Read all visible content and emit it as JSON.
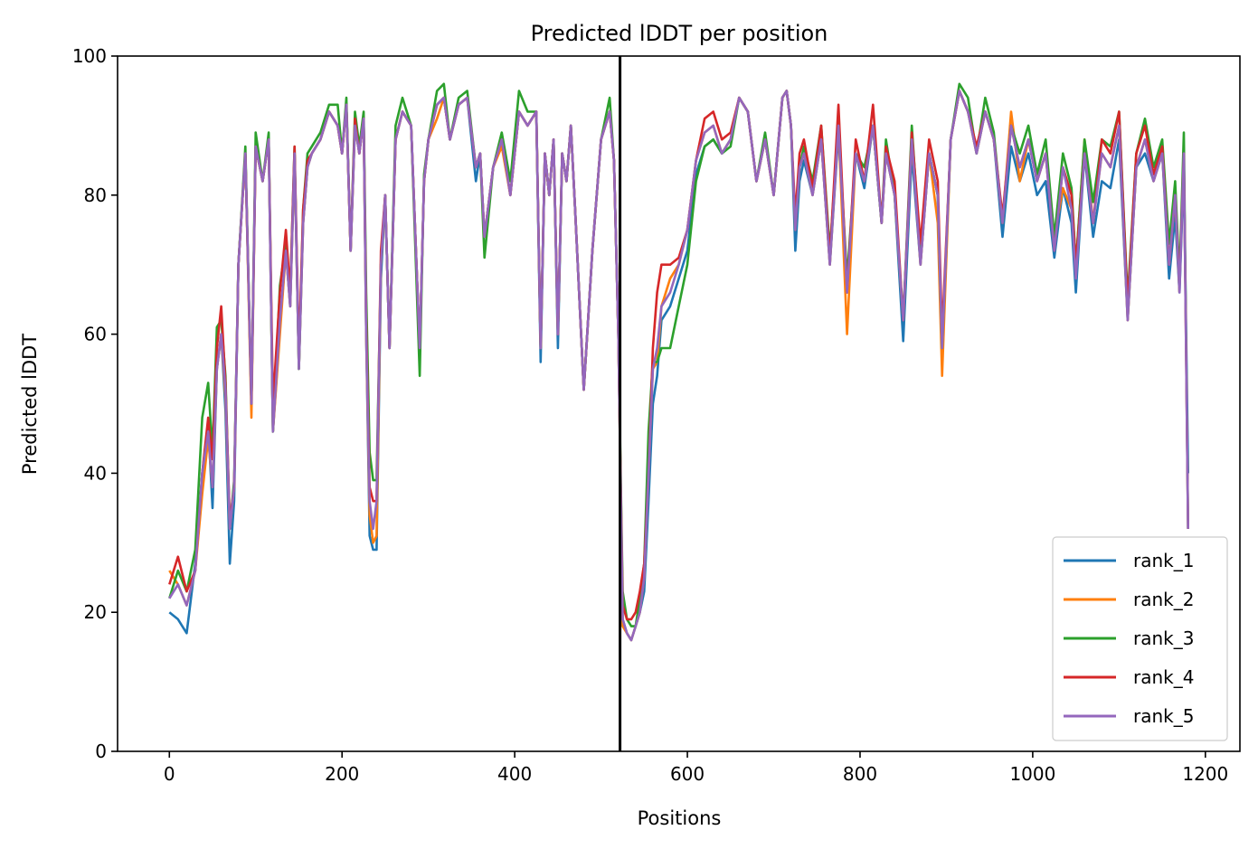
{
  "chart_data": {
    "type": "line",
    "title": "Predicted lDDT per position",
    "xlabel": "Positions",
    "ylabel": "Predicted lDDT",
    "xlim": [
      -60,
      1240
    ],
    "ylim": [
      0,
      100
    ],
    "xticks": [
      0,
      200,
      400,
      600,
      800,
      1000,
      1200
    ],
    "yticks": [
      0,
      20,
      40,
      60,
      80,
      100
    ],
    "grid": false,
    "legend_position": "lower-right",
    "chain_break": 522,
    "series": [
      {
        "name": "rank_1",
        "color": "#1f77b4"
      },
      {
        "name": "rank_2",
        "color": "#ff7f0e"
      },
      {
        "name": "rank_3",
        "color": "#2ca02c"
      },
      {
        "name": "rank_4",
        "color": "#d62728"
      },
      {
        "name": "rank_5",
        "color": "#9467bd"
      }
    ],
    "x": [
      0,
      10,
      20,
      30,
      38,
      45,
      50,
      55,
      60,
      65,
      70,
      75,
      80,
      88,
      95,
      100,
      108,
      115,
      120,
      128,
      135,
      140,
      145,
      150,
      155,
      160,
      165,
      175,
      185,
      195,
      200,
      205,
      210,
      215,
      220,
      225,
      228,
      232,
      236,
      240,
      245,
      250,
      255,
      262,
      270,
      280,
      290,
      295,
      300,
      310,
      318,
      325,
      335,
      345,
      355,
      360,
      365,
      375,
      385,
      395,
      405,
      415,
      425,
      430,
      435,
      440,
      445,
      450,
      455,
      460,
      465,
      470,
      480,
      490,
      500,
      510,
      515,
      520,
      525,
      530,
      535,
      540,
      545,
      550,
      555,
      560,
      565,
      570,
      580,
      590,
      600,
      610,
      620,
      630,
      640,
      650,
      660,
      670,
      680,
      690,
      700,
      710,
      715,
      720,
      725,
      730,
      735,
      745,
      755,
      765,
      775,
      785,
      795,
      805,
      815,
      825,
      830,
      840,
      850,
      860,
      870,
      880,
      890,
      895,
      905,
      915,
      925,
      935,
      945,
      955,
      965,
      975,
      985,
      995,
      1005,
      1015,
      1025,
      1035,
      1045,
      1050,
      1060,
      1070,
      1080,
      1090,
      1100,
      1110,
      1120,
      1130,
      1140,
      1150,
      1158,
      1165,
      1170,
      1175,
      1180
    ],
    "base": [
      22,
      24,
      21,
      26,
      40,
      46,
      38,
      55,
      60,
      52,
      32,
      38,
      70,
      86,
      50,
      87,
      82,
      88,
      46,
      62,
      72,
      64,
      86,
      55,
      76,
      84,
      86,
      88,
      92,
      90,
      86,
      93,
      72,
      90,
      86,
      91,
      60,
      36,
      32,
      36,
      70,
      80,
      58,
      88,
      92,
      90,
      58,
      82,
      88,
      93,
      94,
      88,
      93,
      94,
      84,
      86,
      74,
      84,
      88,
      80,
      92,
      90,
      92,
      58,
      86,
      80,
      88,
      60,
      86,
      82,
      90,
      78,
      52,
      72,
      88,
      92,
      85,
      60,
      19,
      17,
      16,
      18,
      20,
      25,
      40,
      55,
      58,
      64,
      66,
      70,
      75,
      85,
      89,
      90,
      86,
      88,
      94,
      92,
      82,
      88,
      80,
      94,
      95,
      90,
      75,
      84,
      86,
      80,
      88,
      70,
      90,
      66,
      86,
      82,
      90,
      76,
      86,
      80,
      62,
      88,
      70,
      86,
      80,
      58,
      88,
      95,
      92,
      86,
      92,
      88,
      76,
      90,
      84,
      88,
      82,
      86,
      72,
      84,
      78,
      68,
      86,
      76,
      86,
      84,
      90,
      62,
      84,
      88,
      82,
      86,
      70,
      80,
      66,
      86,
      32
    ],
    "offsets": [
      [
        -2,
        -5,
        -4,
        1,
        0,
        1,
        -3,
        0,
        0,
        -3,
        -5,
        -2,
        0,
        0,
        0,
        0,
        0,
        0,
        0,
        -1,
        0,
        0,
        0,
        0,
        0,
        0,
        0,
        0,
        0,
        0,
        0,
        0,
        0,
        0,
        0,
        0,
        0,
        -5,
        -3,
        -7,
        -2,
        0,
        0,
        0,
        0,
        0,
        0,
        0,
        0,
        0,
        0,
        0,
        0,
        0,
        -2,
        0,
        0,
        0,
        0,
        0,
        0,
        0,
        0,
        -2,
        0,
        0,
        0,
        -2,
        0,
        0,
        0,
        0,
        0,
        0,
        0,
        0,
        0,
        0,
        0,
        0,
        0,
        0,
        0,
        -2,
        -4,
        -5,
        -4,
        -2,
        -2,
        -2,
        -3,
        -2,
        -2,
        -2,
        0,
        0,
        0,
        0,
        0,
        0,
        0,
        0,
        0,
        0,
        -3,
        -2,
        -1,
        0,
        0,
        0,
        -1,
        0,
        0,
        -1,
        0,
        0,
        0,
        0,
        -3,
        -2,
        0,
        0,
        0,
        0,
        0,
        0,
        0,
        0,
        0,
        0,
        -2,
        -3,
        -2,
        -2,
        -2,
        -4,
        -1,
        -3,
        -2,
        -2,
        0,
        -2,
        -4,
        -3,
        -2,
        0,
        0,
        -2,
        0,
        0,
        -2,
        -3,
        0,
        -2,
        8
      ],
      [
        4,
        0,
        0,
        0,
        -3,
        -1,
        0,
        0,
        0,
        -1,
        0,
        0,
        0,
        0,
        -2,
        0,
        0,
        0,
        0,
        -2,
        0,
        0,
        0,
        0,
        0,
        0,
        0,
        0,
        0,
        0,
        0,
        0,
        0,
        0,
        0,
        0,
        0,
        -2,
        -2,
        -5,
        0,
        0,
        0,
        0,
        0,
        0,
        0,
        0,
        0,
        -2,
        0,
        0,
        0,
        0,
        0,
        0,
        0,
        0,
        -1,
        0,
        0,
        0,
        0,
        0,
        0,
        0,
        0,
        0,
        0,
        0,
        0,
        0,
        0,
        0,
        0,
        0,
        0,
        0,
        -1,
        0,
        0,
        0,
        0,
        0,
        0,
        0,
        -2,
        0,
        2,
        0,
        0,
        0,
        0,
        0,
        0,
        0,
        0,
        0,
        0,
        0,
        0,
        0,
        0,
        0,
        0,
        0,
        0,
        0,
        0,
        0,
        0,
        -6,
        0,
        0,
        0,
        0,
        0,
        0,
        0,
        0,
        0,
        0,
        -4,
        -4,
        0,
        0,
        0,
        0,
        0,
        0,
        0,
        2,
        -2,
        0,
        0,
        0,
        2,
        -3,
        0,
        2,
        2,
        0,
        0,
        0,
        0,
        0,
        0,
        0,
        0,
        0,
        0,
        0,
        0
      ],
      [
        0,
        2,
        2,
        3,
        8,
        7,
        5,
        6,
        2,
        2,
        0,
        1,
        0,
        1,
        0,
        2,
        0,
        1,
        0,
        5,
        1,
        2,
        1,
        0,
        2,
        2,
        1,
        1,
        1,
        3,
        0,
        1,
        0,
        2,
        1,
        1,
        6,
        7,
        7,
        3,
        0,
        0,
        0,
        2,
        2,
        0,
        -4,
        1,
        0,
        2,
        2,
        0,
        1,
        1,
        0,
        0,
        -3,
        0,
        1,
        2,
        3,
        2,
        0,
        0,
        0,
        0,
        0,
        0,
        0,
        0,
        0,
        0,
        0,
        0,
        0,
        2,
        0,
        0,
        4,
        2,
        2,
        0,
        2,
        2,
        6,
        1,
        -2,
        -6,
        -8,
        -6,
        -5,
        -3,
        -2,
        -2,
        0,
        -1,
        0,
        0,
        0,
        1,
        0,
        0,
        0,
        0,
        0,
        0,
        1,
        2,
        2,
        2,
        0,
        2,
        0,
        2,
        0,
        0,
        2,
        0,
        0,
        2,
        1,
        0,
        0,
        0,
        0,
        1,
        2,
        0,
        2,
        1,
        0,
        0,
        2,
        2,
        1,
        2,
        2,
        2,
        3,
        2,
        2,
        3,
        2,
        3,
        2,
        3,
        2,
        3,
        2,
        2,
        3,
        2,
        2,
        3,
        0
      ],
      [
        2,
        4,
        2,
        0,
        0,
        2,
        4,
        3,
        4,
        1,
        1,
        0,
        0,
        0,
        0,
        0,
        0,
        0,
        4,
        4,
        3,
        2,
        1,
        2,
        2,
        1,
        0,
        0,
        0,
        0,
        0,
        0,
        0,
        1,
        0,
        0,
        2,
        2,
        4,
        0,
        2,
        0,
        0,
        0,
        0,
        0,
        0,
        0,
        0,
        0,
        0,
        0,
        0,
        0,
        0,
        0,
        0,
        0,
        0,
        0,
        0,
        0,
        0,
        0,
        0,
        0,
        0,
        0,
        0,
        0,
        0,
        0,
        0,
        0,
        0,
        0,
        0,
        0,
        2,
        2,
        3,
        2,
        3,
        2,
        0,
        3,
        8,
        6,
        4,
        1,
        0,
        0,
        2,
        2,
        2,
        1,
        0,
        0,
        0,
        0,
        0,
        0,
        0,
        0,
        2,
        2,
        2,
        1,
        2,
        1,
        3,
        0,
        2,
        0,
        3,
        0,
        1,
        2,
        0,
        1,
        3,
        2,
        2,
        2,
        0,
        0,
        0,
        1,
        0,
        0,
        1,
        0,
        0,
        0,
        0,
        0,
        0,
        0,
        2,
        2,
        0,
        0,
        2,
        2,
        2,
        2,
        2,
        2,
        1,
        1,
        0,
        0,
        1,
        0,
        0
      ],
      [
        0,
        0,
        0,
        0,
        0,
        0,
        0,
        0,
        0,
        0,
        0,
        0,
        0,
        0,
        0,
        0,
        0,
        0,
        0,
        0,
        0,
        0,
        0,
        0,
        0,
        0,
        0,
        0,
        0,
        0,
        0,
        0,
        0,
        0,
        0,
        0,
        0,
        0,
        0,
        0,
        0,
        0,
        0,
        0,
        0,
        0,
        0,
        0,
        0,
        0,
        0,
        0,
        0,
        0,
        0,
        0,
        0,
        0,
        0,
        0,
        0,
        0,
        0,
        0,
        0,
        0,
        0,
        0,
        0,
        0,
        0,
        0,
        0,
        0,
        0,
        0,
        0,
        0,
        0,
        0,
        0,
        0,
        0,
        0,
        0,
        0,
        0,
        0,
        0,
        0,
        0,
        0,
        0,
        0,
        0,
        0,
        0,
        0,
        0,
        0,
        0,
        0,
        0,
        0,
        0,
        0,
        0,
        0,
        0,
        0,
        0,
        0,
        0,
        0,
        0,
        0,
        0,
        0,
        0,
        0,
        0,
        0,
        0,
        0,
        0,
        0,
        0,
        0,
        0,
        0,
        0,
        0,
        0,
        0,
        0,
        0,
        0,
        0,
        0,
        0,
        0,
        0,
        0,
        0,
        0,
        0,
        0,
        0,
        0,
        0,
        0,
        0,
        0,
        0,
        0
      ]
    ]
  }
}
